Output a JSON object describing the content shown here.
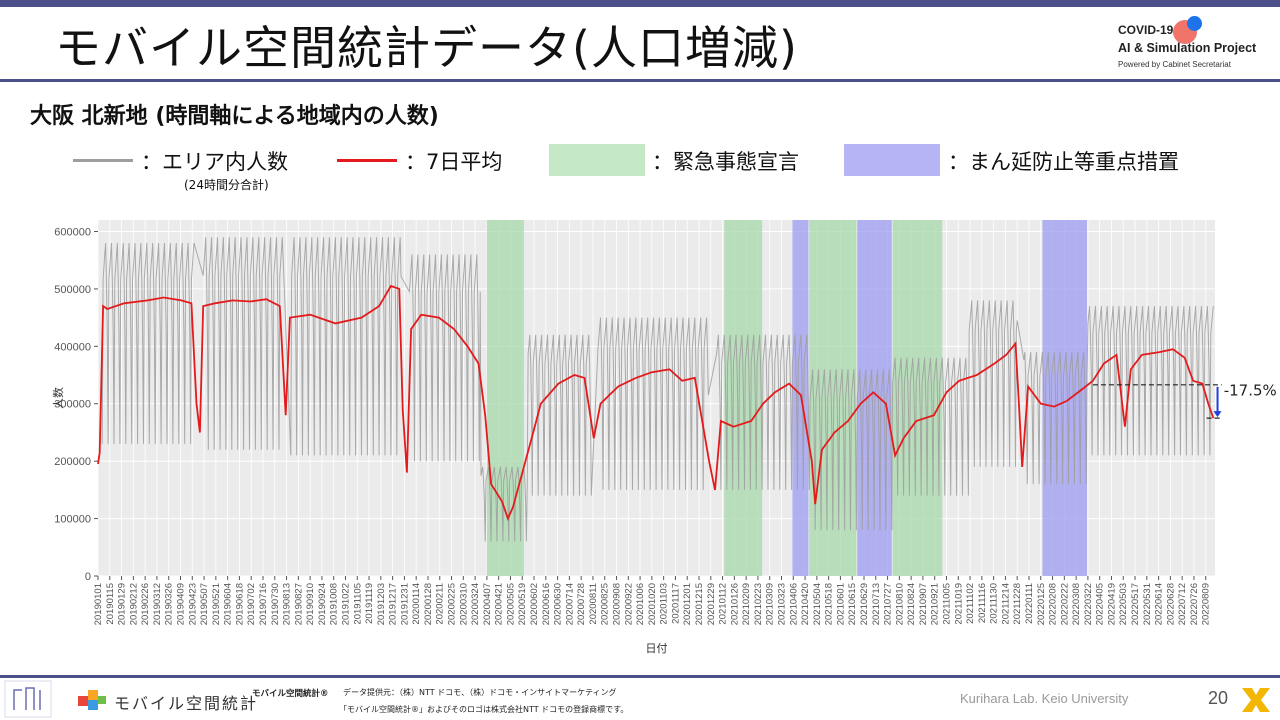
{
  "slide": {
    "title": "モバイル空間統計データ(人口増減)",
    "subtitle": "大阪 北新地 (時間軸による地域内の人数)",
    "logo": {
      "line1": "COVID-19",
      "line2": "AI & Simulation Project",
      "line3": "Powered by Cabinet Secretariat"
    },
    "footer": {
      "brand": "モバイル空間統計",
      "label": "モバイル空間統計®",
      "source": "データ提供元：（株）NTT ドコモ、（株）ドコモ・インサイトマーケティング",
      "trademark": "「モバイル空間統計®」およびそのロゴは株式会社NTT ドコモの登録商標です。",
      "lab": "Kurihara Lab. Keio University",
      "page": "20"
    },
    "colors": {
      "accent": "#4b4f8a",
      "raw": "#9e9e9e",
      "avg": "#e41a1c",
      "emergency": "#a7d8a9",
      "semi": "#9c9cf2"
    }
  },
  "legend": {
    "raw_label": "：エリア内人数",
    "raw_sub": "(24時間分合計)",
    "avg_label": "：7日平均",
    "emergency_label": "：緊急事態宣言",
    "semi_label": "：まん延防止等重点措置"
  },
  "chart_data": {
    "type": "line",
    "xlabel": "日付",
    "ylabel": "人数",
    "ylim": [
      0,
      620000
    ],
    "yticks": [
      0,
      100000,
      200000,
      300000,
      400000,
      500000,
      600000
    ],
    "ytick_labels": [
      "0",
      "100000",
      "200000",
      "300000",
      "400000",
      "500000",
      "600000"
    ],
    "x_range": [
      "2019-01-01",
      "2022-08-20"
    ],
    "xtick_labels": [
      "20190101",
      "20190115",
      "20190129",
      "20190212",
      "20190226",
      "20190312",
      "20190326",
      "20190409",
      "20190423",
      "20190507",
      "20190521",
      "20190604",
      "20190618",
      "20190702",
      "20190716",
      "20190730",
      "20190813",
      "20190827",
      "20190910",
      "20190924",
      "20191008",
      "20191022",
      "20191105",
      "20191119",
      "20191203",
      "20191217",
      "20191231",
      "20200114",
      "20200128",
      "20200211",
      "20200225",
      "20200310",
      "20200324",
      "20200407",
      "20200421",
      "20200505",
      "20200519",
      "20200602",
      "20200616",
      "20200630",
      "20200714",
      "20200728",
      "20200811",
      "20200825",
      "20200908",
      "20200922",
      "20201006",
      "20201020",
      "20201103",
      "20201117",
      "20201201",
      "20201215",
      "20201229",
      "20210112",
      "20210126",
      "20210209",
      "20210223",
      "20210309",
      "20210323",
      "20210406",
      "20210420",
      "20210504",
      "20210518",
      "20210601",
      "20210615",
      "20210629",
      "20210713",
      "20210727",
      "20210810",
      "20210824",
      "20210907",
      "20210921",
      "20211005",
      "20211019",
      "20211102",
      "20211116",
      "20211130",
      "20211214",
      "20211228",
      "20220111",
      "20220125",
      "20220208",
      "20220222",
      "20220308",
      "20220322",
      "20220405",
      "20220419",
      "20220503",
      "20220517",
      "20220531",
      "20220614",
      "20220628",
      "20220712",
      "20220726",
      "20220809"
    ],
    "emergency_periods": [
      [
        "2020-04-07",
        "2020-05-21"
      ],
      [
        "2021-01-14",
        "2021-02-28"
      ],
      [
        "2021-04-25",
        "2021-06-20"
      ],
      [
        "2021-08-02",
        "2021-09-30"
      ]
    ],
    "semi_emergency_periods": [
      [
        "2021-04-05",
        "2021-04-24"
      ],
      [
        "2021-06-21",
        "2021-08-01"
      ],
      [
        "2022-01-27",
        "2022-03-21"
      ]
    ],
    "avg_series": {
      "name": "7日平均",
      "points": [
        [
          "2019-01-01",
          195000
        ],
        [
          "2019-01-03",
          215000
        ],
        [
          "2019-01-07",
          470000
        ],
        [
          "2019-01-12",
          465000
        ],
        [
          "2019-02-01",
          475000
        ],
        [
          "2019-03-01",
          480000
        ],
        [
          "2019-03-20",
          485000
        ],
        [
          "2019-04-10",
          480000
        ],
        [
          "2019-04-22",
          475000
        ],
        [
          "2019-04-28",
          300000
        ],
        [
          "2019-05-02",
          250000
        ],
        [
          "2019-05-06",
          470000
        ],
        [
          "2019-05-20",
          475000
        ],
        [
          "2019-06-10",
          480000
        ],
        [
          "2019-07-01",
          478000
        ],
        [
          "2019-07-20",
          482000
        ],
        [
          "2019-08-05",
          470000
        ],
        [
          "2019-08-12",
          280000
        ],
        [
          "2019-08-17",
          450000
        ],
        [
          "2019-09-10",
          455000
        ],
        [
          "2019-10-10",
          440000
        ],
        [
          "2019-11-10",
          450000
        ],
        [
          "2019-12-01",
          470000
        ],
        [
          "2019-12-15",
          505000
        ],
        [
          "2019-12-25",
          500000
        ],
        [
          "2019-12-29",
          290000
        ],
        [
          "2020-01-03",
          180000
        ],
        [
          "2020-01-08",
          430000
        ],
        [
          "2020-01-20",
          455000
        ],
        [
          "2020-02-10",
          450000
        ],
        [
          "2020-02-28",
          430000
        ],
        [
          "2020-03-15",
          400000
        ],
        [
          "2020-03-28",
          370000
        ],
        [
          "2020-04-05",
          280000
        ],
        [
          "2020-04-12",
          160000
        ],
        [
          "2020-04-25",
          130000
        ],
        [
          "2020-05-02",
          100000
        ],
        [
          "2020-05-08",
          120000
        ],
        [
          "2020-05-20",
          185000
        ],
        [
          "2020-06-01",
          250000
        ],
        [
          "2020-06-10",
          300000
        ],
        [
          "2020-07-01",
          335000
        ],
        [
          "2020-07-20",
          350000
        ],
        [
          "2020-08-01",
          345000
        ],
        [
          "2020-08-12",
          240000
        ],
        [
          "2020-08-20",
          300000
        ],
        [
          "2020-09-10",
          330000
        ],
        [
          "2020-10-01",
          345000
        ],
        [
          "2020-10-20",
          355000
        ],
        [
          "2020-11-10",
          360000
        ],
        [
          "2020-11-25",
          340000
        ],
        [
          "2020-12-10",
          345000
        ],
        [
          "2020-12-27",
          200000
        ],
        [
          "2021-01-03",
          150000
        ],
        [
          "2021-01-10",
          270000
        ],
        [
          "2021-01-25",
          260000
        ],
        [
          "2021-02-15",
          270000
        ],
        [
          "2021-03-01",
          300000
        ],
        [
          "2021-03-15",
          320000
        ],
        [
          "2021-04-01",
          335000
        ],
        [
          "2021-04-15",
          315000
        ],
        [
          "2021-04-28",
          200000
        ],
        [
          "2021-05-02",
          125000
        ],
        [
          "2021-05-10",
          220000
        ],
        [
          "2021-05-25",
          250000
        ],
        [
          "2021-06-10",
          270000
        ],
        [
          "2021-06-25",
          300000
        ],
        [
          "2021-07-10",
          320000
        ],
        [
          "2021-07-25",
          300000
        ],
        [
          "2021-08-05",
          210000
        ],
        [
          "2021-08-15",
          240000
        ],
        [
          "2021-08-30",
          270000
        ],
        [
          "2021-09-20",
          280000
        ],
        [
          "2021-10-05",
          320000
        ],
        [
          "2021-10-20",
          340000
        ],
        [
          "2021-11-10",
          350000
        ],
        [
          "2021-12-01",
          370000
        ],
        [
          "2021-12-15",
          385000
        ],
        [
          "2021-12-26",
          405000
        ],
        [
          "2021-12-30",
          300000
        ],
        [
          "2022-01-03",
          190000
        ],
        [
          "2022-01-10",
          330000
        ],
        [
          "2022-01-25",
          300000
        ],
        [
          "2022-02-10",
          295000
        ],
        [
          "2022-02-25",
          305000
        ],
        [
          "2022-03-15",
          325000
        ],
        [
          "2022-03-28",
          340000
        ],
        [
          "2022-04-10",
          370000
        ],
        [
          "2022-04-25",
          385000
        ],
        [
          "2022-05-05",
          260000
        ],
        [
          "2022-05-12",
          360000
        ],
        [
          "2022-05-25",
          385000
        ],
        [
          "2022-06-15",
          390000
        ],
        [
          "2022-07-01",
          395000
        ],
        [
          "2022-07-15",
          380000
        ],
        [
          "2022-07-25",
          340000
        ],
        [
          "2022-08-05",
          335000
        ],
        [
          "2022-08-12",
          300000
        ],
        [
          "2022-08-18",
          275000
        ]
      ]
    },
    "raw_series": {
      "name": "エリア内人数",
      "segments": [
        {
          "start": "2019-01-06",
          "end": "2019-04-25",
          "base": 230000,
          "peak": 580000
        },
        {
          "start": "2019-05-06",
          "end": "2019-08-08",
          "base": 220000,
          "peak": 590000
        },
        {
          "start": "2019-08-18",
          "end": "2019-12-27",
          "base": 210000,
          "peak": 590000
        },
        {
          "start": "2020-01-06",
          "end": "2020-03-30",
          "base": 200000,
          "peak": 560000
        },
        {
          "start": "2020-03-31",
          "end": "2020-05-25",
          "base": 60000,
          "peak": 190000
        },
        {
          "start": "2020-05-26",
          "end": "2020-08-09",
          "base": 140000,
          "peak": 420000
        },
        {
          "start": "2020-08-17",
          "end": "2020-12-26",
          "base": 150000,
          "peak": 450000
        },
        {
          "start": "2021-01-05",
          "end": "2021-04-25",
          "base": 150000,
          "peak": 420000
        },
        {
          "start": "2021-04-26",
          "end": "2021-08-01",
          "base": 80000,
          "peak": 360000
        },
        {
          "start": "2021-08-02",
          "end": "2021-10-31",
          "base": 140000,
          "peak": 380000
        },
        {
          "start": "2021-11-01",
          "end": "2021-12-28",
          "base": 190000,
          "peak": 480000
        },
        {
          "start": "2022-01-05",
          "end": "2022-03-21",
          "base": 160000,
          "peak": 390000
        },
        {
          "start": "2022-03-22",
          "end": "2022-08-18",
          "base": 210000,
          "peak": 470000
        }
      ]
    },
    "annotation": {
      "text": "-17.5%",
      "from": 333000,
      "to": 275000,
      "start": "2022-03-28",
      "end": "2022-08-28"
    }
  }
}
